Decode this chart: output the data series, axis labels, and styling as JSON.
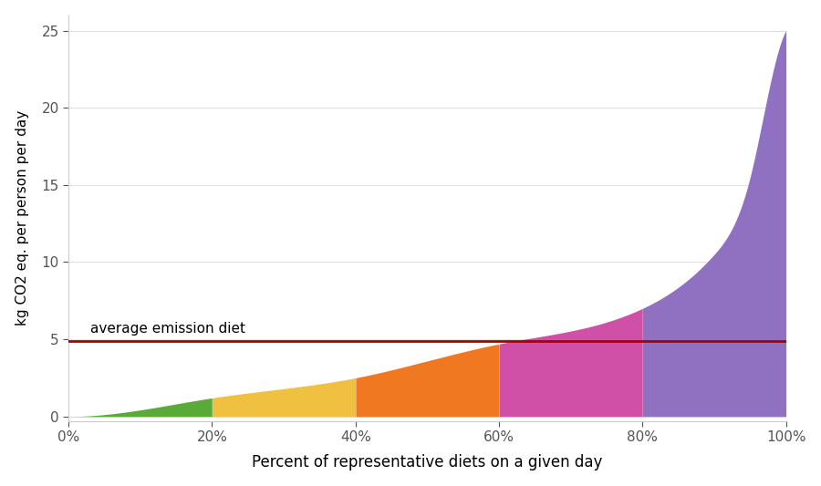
{
  "title": "",
  "xlabel": "Percent of representative diets on a given day",
  "ylabel": "kg CO2 eq. per person per day",
  "xlim": [
    0,
    1
  ],
  "ylim": [
    -0.3,
    26
  ],
  "yticks": [
    0,
    5,
    10,
    15,
    20,
    25
  ],
  "xticks": [
    0,
    0.2,
    0.4,
    0.6,
    0.8,
    1.0
  ],
  "xticklabels": [
    "0%",
    "20%",
    "40%",
    "60%",
    "80%",
    "100%"
  ],
  "avg_line_y": 4.9,
  "avg_label": "average emission diet",
  "avg_line_color": "#aa0000",
  "segment_colors": [
    "#5aaa38",
    "#f0c040",
    "#f07820",
    "#d050a8",
    "#9070c0"
  ],
  "segment_bounds": [
    0,
    0.2,
    0.4,
    0.6,
    0.8,
    1.0
  ],
  "background_color": "#ffffff",
  "grid_color": "#e0e0e0",
  "curve_k": 6.5,
  "curve_scale": 25.0
}
